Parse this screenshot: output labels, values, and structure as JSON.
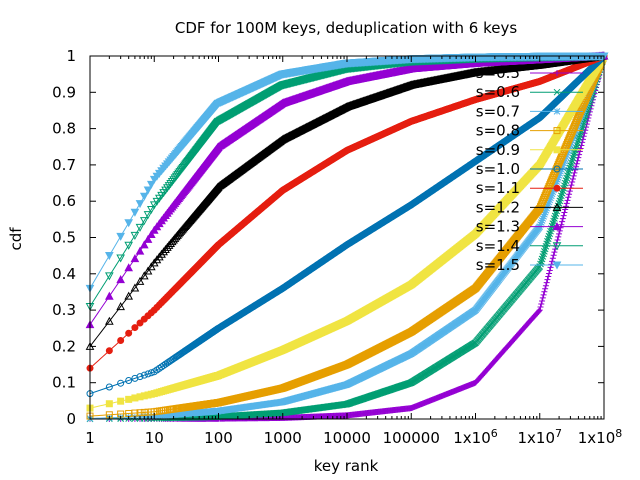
{
  "chart_data": {
    "type": "line",
    "title": "CDF for 100M keys, deduplication with 6 keys",
    "xlabel": "key rank",
    "ylabel": "cdf",
    "xscale": "log",
    "xlim": [
      1,
      100000000
    ],
    "ylim": [
      0,
      1
    ],
    "y_ticks": [
      0,
      0.1,
      0.2,
      0.3,
      0.4,
      0.5,
      0.6,
      0.7,
      0.8,
      0.9,
      1
    ],
    "y_tick_labels": [
      "0",
      "0.1",
      "0.2",
      "0.3",
      "0.4",
      "0.5",
      "0.6",
      "0.7",
      "0.8",
      "0.9",
      "1"
    ],
    "x_ticks": [
      1,
      10,
      100,
      1000,
      10000,
      100000,
      1000000,
      10000000,
      100000000
    ],
    "x_tick_labels": [
      {
        "base": "1",
        "exp": ""
      },
      {
        "base": "10",
        "exp": ""
      },
      {
        "base": "100",
        "exp": ""
      },
      {
        "base": "1000",
        "exp": ""
      },
      {
        "base": "10000",
        "exp": ""
      },
      {
        "base": "100000",
        "exp": ""
      },
      {
        "base": "1x10",
        "exp": "6"
      },
      {
        "base": "1x10",
        "exp": "7"
      },
      {
        "base": "1x10",
        "exp": "8"
      }
    ],
    "grid": false,
    "legend_position": "top-right",
    "x": [
      1,
      10,
      100,
      1000,
      10000,
      100000,
      1000000,
      10000000,
      100000000
    ],
    "series": [
      {
        "name": "s=0.5",
        "color": "#9400d3",
        "marker": "plus",
        "values": [
          0.0001,
          0.0003,
          0.001,
          0.003,
          0.01,
          0.03,
          0.1,
          0.3,
          1.0
        ]
      },
      {
        "name": "s=0.6",
        "color": "#009e73",
        "marker": "cross",
        "values": [
          0.0004,
          0.0018,
          0.0066,
          0.017,
          0.041,
          0.1,
          0.21,
          0.42,
          1.0
        ]
      },
      {
        "name": "s=0.7",
        "color": "#56b4e9",
        "marker": "star",
        "values": [
          0.0016,
          0.0074,
          0.022,
          0.047,
          0.095,
          0.18,
          0.3,
          0.53,
          1.0
        ]
      },
      {
        "name": "s=0.8",
        "color": "#e69f00",
        "marker": "box",
        "values": [
          0.008,
          0.02,
          0.045,
          0.085,
          0.15,
          0.24,
          0.36,
          0.58,
          1.0
        ]
      },
      {
        "name": "s=0.9",
        "color": "#f0e442",
        "marker": "filled-box",
        "values": [
          0.03,
          0.07,
          0.12,
          0.19,
          0.27,
          0.37,
          0.51,
          0.7,
          1.0
        ]
      },
      {
        "name": "s=1.0",
        "color": "#0072b2",
        "marker": "circle",
        "values": [
          0.07,
          0.13,
          0.25,
          0.36,
          0.48,
          0.59,
          0.71,
          0.83,
          1.0
        ]
      },
      {
        "name": "s=1.1",
        "color": "#e51e10",
        "marker": "filled-circle",
        "values": [
          0.14,
          0.3,
          0.48,
          0.63,
          0.74,
          0.82,
          0.88,
          0.93,
          1.0
        ]
      },
      {
        "name": "s=1.2",
        "color": "#000000",
        "marker": "triangle",
        "values": [
          0.2,
          0.43,
          0.64,
          0.77,
          0.86,
          0.92,
          0.955,
          0.975,
          1.0
        ]
      },
      {
        "name": "s=1.3",
        "color": "#9400d3",
        "marker": "filled-triangle",
        "values": [
          0.26,
          0.52,
          0.75,
          0.87,
          0.93,
          0.965,
          0.98,
          0.99,
          1.0
        ]
      },
      {
        "name": "s=1.4",
        "color": "#009e73",
        "marker": "triangle-down",
        "values": [
          0.31,
          0.59,
          0.82,
          0.92,
          0.965,
          0.985,
          0.993,
          0.997,
          1.0
        ]
      },
      {
        "name": "s=1.5",
        "color": "#56b4e9",
        "marker": "filled-triangle-down",
        "values": [
          0.36,
          0.66,
          0.87,
          0.95,
          0.98,
          0.992,
          0.997,
          0.999,
          1.0
        ]
      }
    ]
  }
}
